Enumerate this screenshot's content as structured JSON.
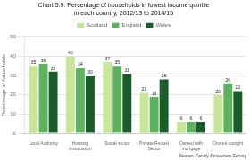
{
  "chart_data": {
    "type": "bar",
    "title": [
      "Chart 5.9: Percentage of households in lowest income quintile",
      "in each country, 2012/13 to 2014/15"
    ],
    "ylabel": "Percentage of households",
    "categories": [
      "Local Authority",
      "Housing\nAssociation",
      "Social sector",
      "Private Rented\nSector",
      "Owned with\nmortgage",
      "Owned outright"
    ],
    "series": [
      {
        "name": "Scotland",
        "color": "#c8e69a",
        "values": [
          35,
          40,
          37,
          21,
          6,
          20
        ]
      },
      {
        "name": "England",
        "color": "#5db35d",
        "values": [
          36,
          34,
          35,
          19,
          6,
          26
        ]
      },
      {
        "name": "Wales",
        "color": "#1a5c2a",
        "values": [
          32,
          30,
          31,
          28,
          6,
          22
        ]
      }
    ],
    "ylim": [
      0,
      50
    ],
    "yticks": [
      0,
      10,
      20,
      30,
      40,
      50
    ],
    "grid": true,
    "legend": "top",
    "data_labels": true,
    "annotations": [
      "Source: Family Resources Survey"
    ]
  }
}
